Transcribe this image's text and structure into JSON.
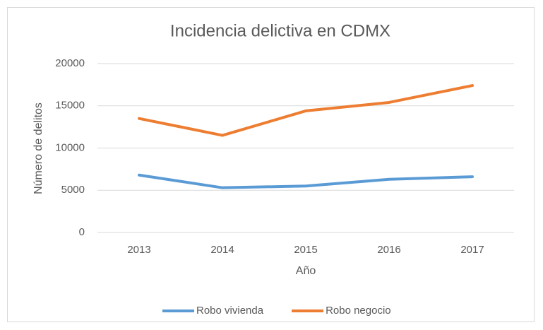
{
  "chart_data": {
    "type": "line",
    "title": "Incidencia delictiva en CDMX",
    "x_label": "Año",
    "y_label": "Número de delitos",
    "categories": [
      "2013",
      "2014",
      "2015",
      "2016",
      "2017"
    ],
    "series": [
      {
        "name": "Robo vivienda",
        "color": "#5b9bd5",
        "values": [
          6800,
          5300,
          5500,
          6300,
          6600
        ]
      },
      {
        "name": "Robo negocio",
        "color": "#ed7d31",
        "values": [
          13500,
          11500,
          14400,
          15400,
          17400
        ]
      }
    ],
    "ylim": [
      0,
      20000
    ],
    "yticks": [
      0,
      5000,
      10000,
      15000,
      20000
    ],
    "grid": true,
    "legend": "bottom"
  }
}
